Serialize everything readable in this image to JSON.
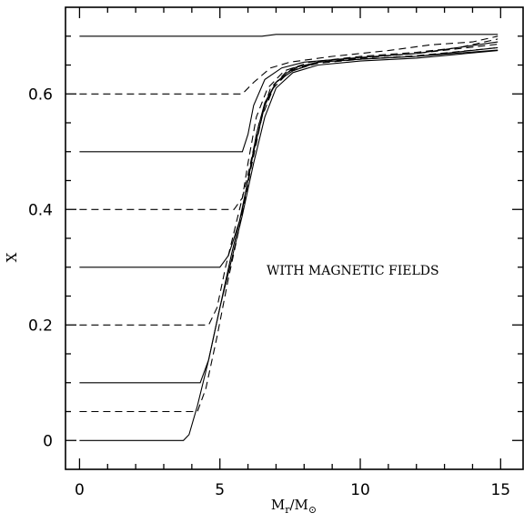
{
  "chart_data": {
    "type": "line",
    "title": "",
    "xlabel": "",
    "ylabel": "X",
    "xlim": [
      -0.5,
      15.8
    ],
    "ylim": [
      -0.05,
      0.75
    ],
    "x_ticks": [
      0,
      5,
      10,
      15
    ],
    "x_tick_labels": [
      "0",
      "5",
      "10",
      "15"
    ],
    "y_ticks": [
      0,
      0.2,
      0.4,
      0.6
    ],
    "y_tick_labels": [
      "0",
      "0.2",
      "0.4",
      "0.6"
    ],
    "grid": false,
    "legend": "none",
    "annotation": "WITH MAGNETIC FIELDS",
    "series": [
      {
        "style": "solid",
        "points": [
          [
            0,
            0.7
          ],
          [
            3,
            0.7
          ],
          [
            6.5,
            0.7
          ],
          [
            7,
            0.703
          ],
          [
            9,
            0.703
          ],
          [
            12,
            0.703
          ],
          [
            14.9,
            0.703
          ]
        ]
      },
      {
        "style": "dashed",
        "points": [
          [
            0,
            0.6
          ],
          [
            5.8,
            0.6
          ],
          [
            6.2,
            0.62
          ],
          [
            6.8,
            0.645
          ],
          [
            7.5,
            0.655
          ],
          [
            9,
            0.665
          ],
          [
            11,
            0.675
          ],
          [
            12.5,
            0.685
          ],
          [
            14,
            0.69
          ],
          [
            14.9,
            0.7
          ]
        ]
      },
      {
        "style": "solid",
        "points": [
          [
            0,
            0.5
          ],
          [
            5.8,
            0.5
          ],
          [
            6.0,
            0.53
          ],
          [
            6.2,
            0.58
          ],
          [
            6.6,
            0.625
          ],
          [
            7.2,
            0.645
          ],
          [
            8,
            0.655
          ],
          [
            10,
            0.663
          ],
          [
            12,
            0.67
          ],
          [
            14.9,
            0.69
          ]
        ]
      },
      {
        "style": "dashed",
        "points": [
          [
            0,
            0.4
          ],
          [
            5.5,
            0.4
          ],
          [
            5.8,
            0.42
          ],
          [
            6.0,
            0.48
          ],
          [
            6.3,
            0.56
          ],
          [
            6.7,
            0.61
          ],
          [
            7.3,
            0.64
          ],
          [
            8.2,
            0.655
          ],
          [
            10,
            0.665
          ],
          [
            12,
            0.672
          ],
          [
            13.5,
            0.68
          ],
          [
            14.9,
            0.695
          ]
        ]
      },
      {
        "style": "solid",
        "points": [
          [
            0,
            0.3
          ],
          [
            5.0,
            0.3
          ],
          [
            5.3,
            0.32
          ],
          [
            5.7,
            0.38
          ],
          [
            6.0,
            0.45
          ],
          [
            6.3,
            0.53
          ],
          [
            6.6,
            0.585
          ],
          [
            7.0,
            0.62
          ],
          [
            7.6,
            0.64
          ],
          [
            8.5,
            0.655
          ],
          [
            10,
            0.66
          ],
          [
            12,
            0.665
          ],
          [
            14.9,
            0.68
          ]
        ]
      },
      {
        "style": "dashed",
        "points": [
          [
            0,
            0.2
          ],
          [
            4.6,
            0.2
          ],
          [
            4.9,
            0.23
          ],
          [
            5.2,
            0.3
          ],
          [
            5.6,
            0.38
          ],
          [
            6.0,
            0.46
          ],
          [
            6.4,
            0.55
          ],
          [
            6.8,
            0.61
          ],
          [
            7.4,
            0.64
          ],
          [
            8.5,
            0.655
          ],
          [
            10,
            0.662
          ],
          [
            12,
            0.67
          ],
          [
            14.9,
            0.686
          ]
        ]
      },
      {
        "style": "solid",
        "points": [
          [
            0,
            0.1
          ],
          [
            4.3,
            0.1
          ],
          [
            4.6,
            0.14
          ],
          [
            5.0,
            0.23
          ],
          [
            5.4,
            0.32
          ],
          [
            5.8,
            0.4
          ],
          [
            6.2,
            0.5
          ],
          [
            6.6,
            0.58
          ],
          [
            7.0,
            0.62
          ],
          [
            7.6,
            0.645
          ],
          [
            8.5,
            0.655
          ],
          [
            10,
            0.66
          ],
          [
            12,
            0.665
          ],
          [
            14.9,
            0.676
          ]
        ]
      },
      {
        "style": "dashed",
        "points": [
          [
            0,
            0.05
          ],
          [
            4.2,
            0.05
          ],
          [
            4.5,
            0.09
          ],
          [
            4.9,
            0.18
          ],
          [
            5.3,
            0.28
          ],
          [
            5.7,
            0.37
          ],
          [
            6.1,
            0.47
          ],
          [
            6.5,
            0.56
          ],
          [
            6.9,
            0.61
          ],
          [
            7.5,
            0.64
          ],
          [
            8.5,
            0.653
          ],
          [
            10,
            0.66
          ],
          [
            12,
            0.666
          ],
          [
            14.9,
            0.68
          ]
        ]
      },
      {
        "style": "solid",
        "points": [
          [
            0,
            0.0
          ],
          [
            3.7,
            0.0
          ],
          [
            3.9,
            0.01
          ],
          [
            4.2,
            0.06
          ],
          [
            4.6,
            0.14
          ],
          [
            5.0,
            0.23
          ],
          [
            5.4,
            0.31
          ],
          [
            5.8,
            0.39
          ],
          [
            6.2,
            0.48
          ],
          [
            6.6,
            0.56
          ],
          [
            7.0,
            0.61
          ],
          [
            7.6,
            0.637
          ],
          [
            8.5,
            0.65
          ],
          [
            10,
            0.657
          ],
          [
            12,
            0.662
          ],
          [
            14.9,
            0.675
          ]
        ]
      }
    ]
  }
}
